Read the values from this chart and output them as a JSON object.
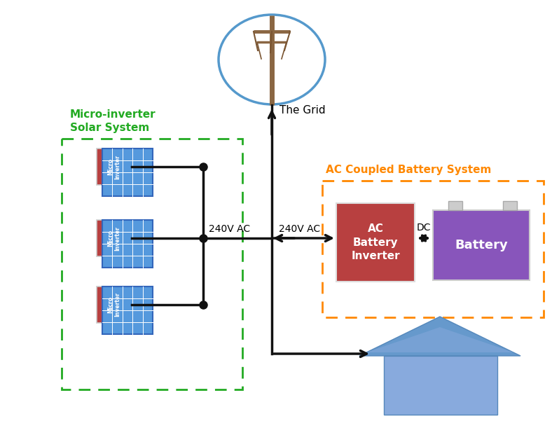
{
  "bg_color": "#ffffff",
  "green_label": "Micro-inverter\nSolar System",
  "orange_label": "AC Coupled Battery System",
  "green_color": "#22aa22",
  "orange_color": "#ff8800",
  "inverter_color": "#b84040",
  "panel_color": "#5599dd",
  "panel_border": "#3366bb",
  "batt_inv_color": "#b84040",
  "battery_color": "#8855bb",
  "house_color": "#6699cc",
  "house_roof_color": "#5588bb",
  "line_color": "#111111",
  "pole_color": "#8a6642",
  "wire_color": "#7a5532",
  "grid_circle_color": "#5599cc",
  "label_240_left": "240V AC",
  "label_240_right": "240V AC",
  "label_dc": "DC",
  "label_grid": "The Grid",
  "label_battery": "Battery",
  "label_batt_inv": "AC\nBattery\nInverter",
  "label_micro": "Micro\nInverter"
}
